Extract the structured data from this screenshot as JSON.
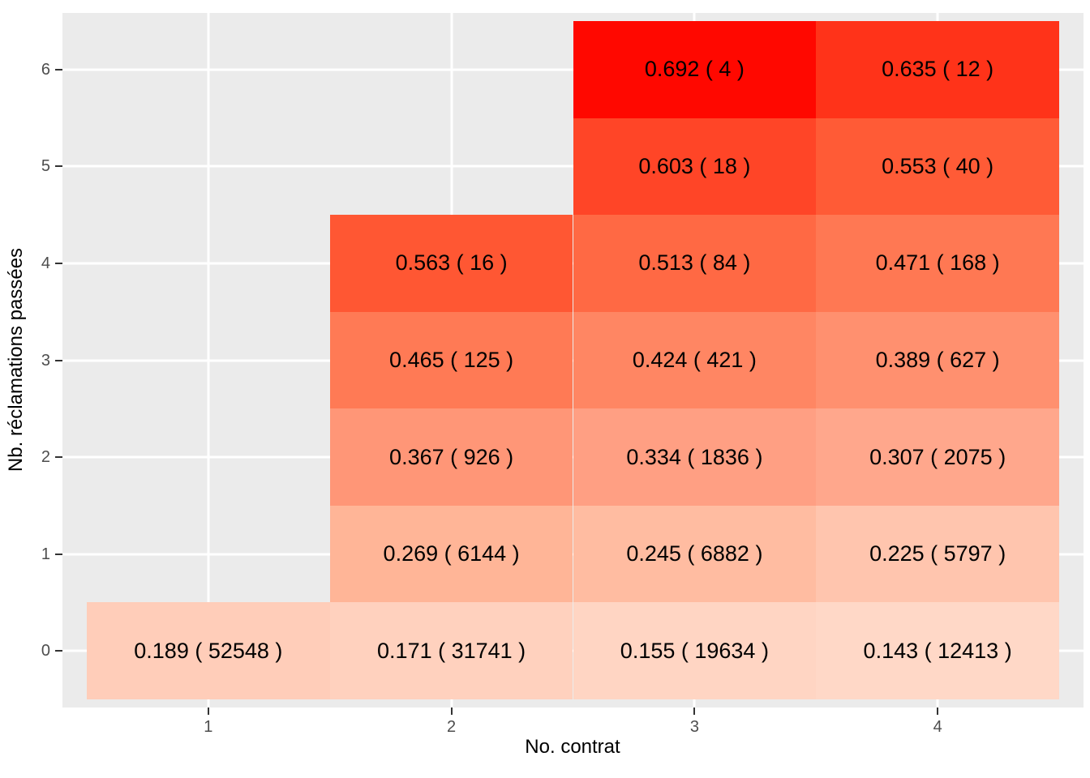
{
  "figure": {
    "background": "#FFFFFF",
    "panel_background": "#EBEBEB",
    "grid_color": "#FFFFFF",
    "tick_mark_color": "#333333",
    "tick_label_color": "#4D4D4D",
    "cell_text_color": "#000000"
  },
  "chart_data": {
    "type": "heatmap",
    "title": "",
    "xlabel": "No. contrat",
    "ylabel": "Nb. réclamations passées",
    "x_ticks": [
      "1",
      "2",
      "3",
      "4"
    ],
    "y_ticks": [
      "0",
      "1",
      "2",
      "3",
      "4",
      "5",
      "6"
    ],
    "x_range": [
      0.4,
      4.6
    ],
    "y_range": [
      -0.585,
      6.585
    ],
    "grid": "major gridlines only, white on gray panel",
    "legend": "none",
    "cell_label_format": "value ( count )",
    "cells": [
      {
        "x": 3,
        "y": 6,
        "value": 0.692,
        "count": 4,
        "label": "0.692 ( 4 )",
        "color": "#FF0800"
      },
      {
        "x": 4,
        "y": 6,
        "value": 0.635,
        "count": 12,
        "label": "0.635 ( 12 )",
        "color": "#FF3319"
      },
      {
        "x": 3,
        "y": 5,
        "value": 0.603,
        "count": 18,
        "label": "0.603 ( 18 )",
        "color": "#FF4527"
      },
      {
        "x": 4,
        "y": 5,
        "value": 0.553,
        "count": 40,
        "label": "0.553 ( 40 )",
        "color": "#FF5B36"
      },
      {
        "x": 2,
        "y": 4,
        "value": 0.563,
        "count": 16,
        "label": "0.563 ( 16 )",
        "color": "#FF5733"
      },
      {
        "x": 3,
        "y": 4,
        "value": 0.513,
        "count": 84,
        "label": "0.513 ( 84 )",
        "color": "#FF6944"
      },
      {
        "x": 4,
        "y": 4,
        "value": 0.471,
        "count": 168,
        "label": "0.471 ( 168 )",
        "color": "#FF7853"
      },
      {
        "x": 2,
        "y": 3,
        "value": 0.465,
        "count": 125,
        "label": "0.465 ( 125 )",
        "color": "#FF7A55"
      },
      {
        "x": 3,
        "y": 3,
        "value": 0.424,
        "count": 421,
        "label": "0.424 ( 421 )",
        "color": "#FF8663"
      },
      {
        "x": 4,
        "y": 3,
        "value": 0.389,
        "count": 627,
        "label": "0.389 ( 627 )",
        "color": "#FF906F"
      },
      {
        "x": 2,
        "y": 2,
        "value": 0.367,
        "count": 926,
        "label": "0.367 ( 926 )",
        "color": "#FF9677"
      },
      {
        "x": 3,
        "y": 2,
        "value": 0.334,
        "count": 1836,
        "label": "0.334 ( 1836 )",
        "color": "#FF9F83"
      },
      {
        "x": 4,
        "y": 2,
        "value": 0.307,
        "count": 2075,
        "label": "0.307 ( 2075 )",
        "color": "#FFA78C"
      },
      {
        "x": 2,
        "y": 1,
        "value": 0.269,
        "count": 6144,
        "label": "0.269 ( 6144 )",
        "color": "#FFB597"
      },
      {
        "x": 3,
        "y": 1,
        "value": 0.245,
        "count": 6882,
        "label": "0.245 ( 6882 )",
        "color": "#FFBCA1"
      },
      {
        "x": 4,
        "y": 1,
        "value": 0.225,
        "count": 5797,
        "label": "0.225 ( 5797 )",
        "color": "#FFC5AE"
      },
      {
        "x": 1,
        "y": 0,
        "value": 0.189,
        "count": 52548,
        "label": "0.189 ( 52548 )",
        "color": "#FFCDB9"
      },
      {
        "x": 2,
        "y": 0,
        "value": 0.171,
        "count": 31741,
        "label": "0.171 ( 31741 )",
        "color": "#FFD1BE"
      },
      {
        "x": 3,
        "y": 0,
        "value": 0.155,
        "count": 19634,
        "label": "0.155 ( 19634 )",
        "color": "#FFD5C3"
      },
      {
        "x": 4,
        "y": 0,
        "value": 0.143,
        "count": 12413,
        "label": "0.143 ( 12413 )",
        "color": "#FFD8C7"
      }
    ]
  }
}
